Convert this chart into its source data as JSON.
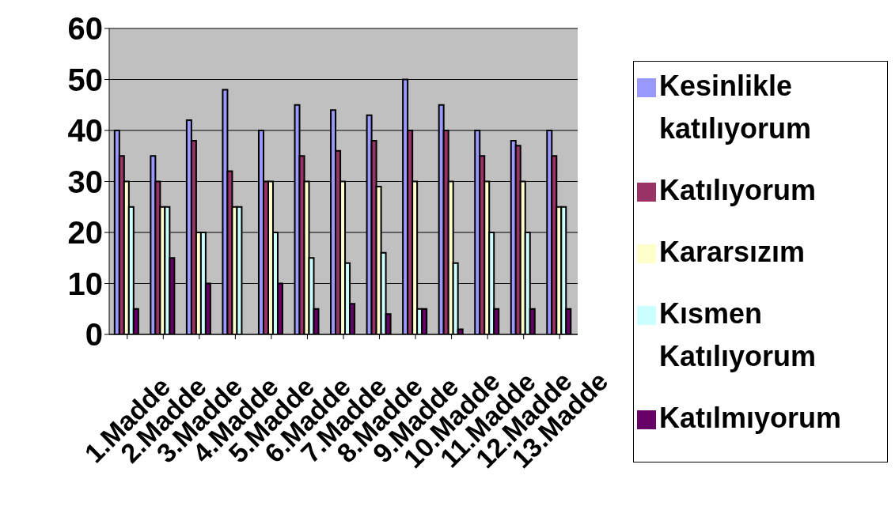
{
  "chart_data": {
    "type": "bar",
    "categories": [
      "1.Madde",
      "2.Madde",
      "3.Madde",
      "4.Madde",
      "5.Madde",
      "6.Madde",
      "7.Madde",
      "8.Madde",
      "9.Madde",
      "10.Madde",
      "11.Madde",
      "12.Madde",
      "13.Madde"
    ],
    "series": [
      {
        "name": "Kesinlikle katılıyorum",
        "color": "#9999ff",
        "values": [
          40,
          35,
          42,
          48,
          40,
          45,
          44,
          43,
          50,
          45,
          40,
          38,
          40
        ]
      },
      {
        "name": "Katılıyorum",
        "color": "#993366",
        "values": [
          35,
          30,
          38,
          32,
          30,
          35,
          36,
          38,
          40,
          40,
          35,
          37,
          35
        ]
      },
      {
        "name": "Kararsızım",
        "color": "#ffffcc",
        "values": [
          30,
          25,
          20,
          25,
          30,
          30,
          30,
          29,
          30,
          30,
          30,
          30,
          25
        ]
      },
      {
        "name": "Kısmen Katılıyorum",
        "color": "#ccffff",
        "values": [
          25,
          25,
          20,
          25,
          20,
          15,
          14,
          16,
          5,
          14,
          20,
          20,
          25
        ]
      },
      {
        "name": "Katılmıyorum",
        "color": "#660066",
        "values": [
          5,
          15,
          10,
          0,
          10,
          5,
          6,
          4,
          5,
          1,
          5,
          5,
          5
        ]
      }
    ],
    "ylim": [
      0,
      60
    ],
    "yticks": [
      0,
      10,
      20,
      30,
      40,
      50,
      60
    ],
    "grid": "y",
    "legend": "right"
  }
}
